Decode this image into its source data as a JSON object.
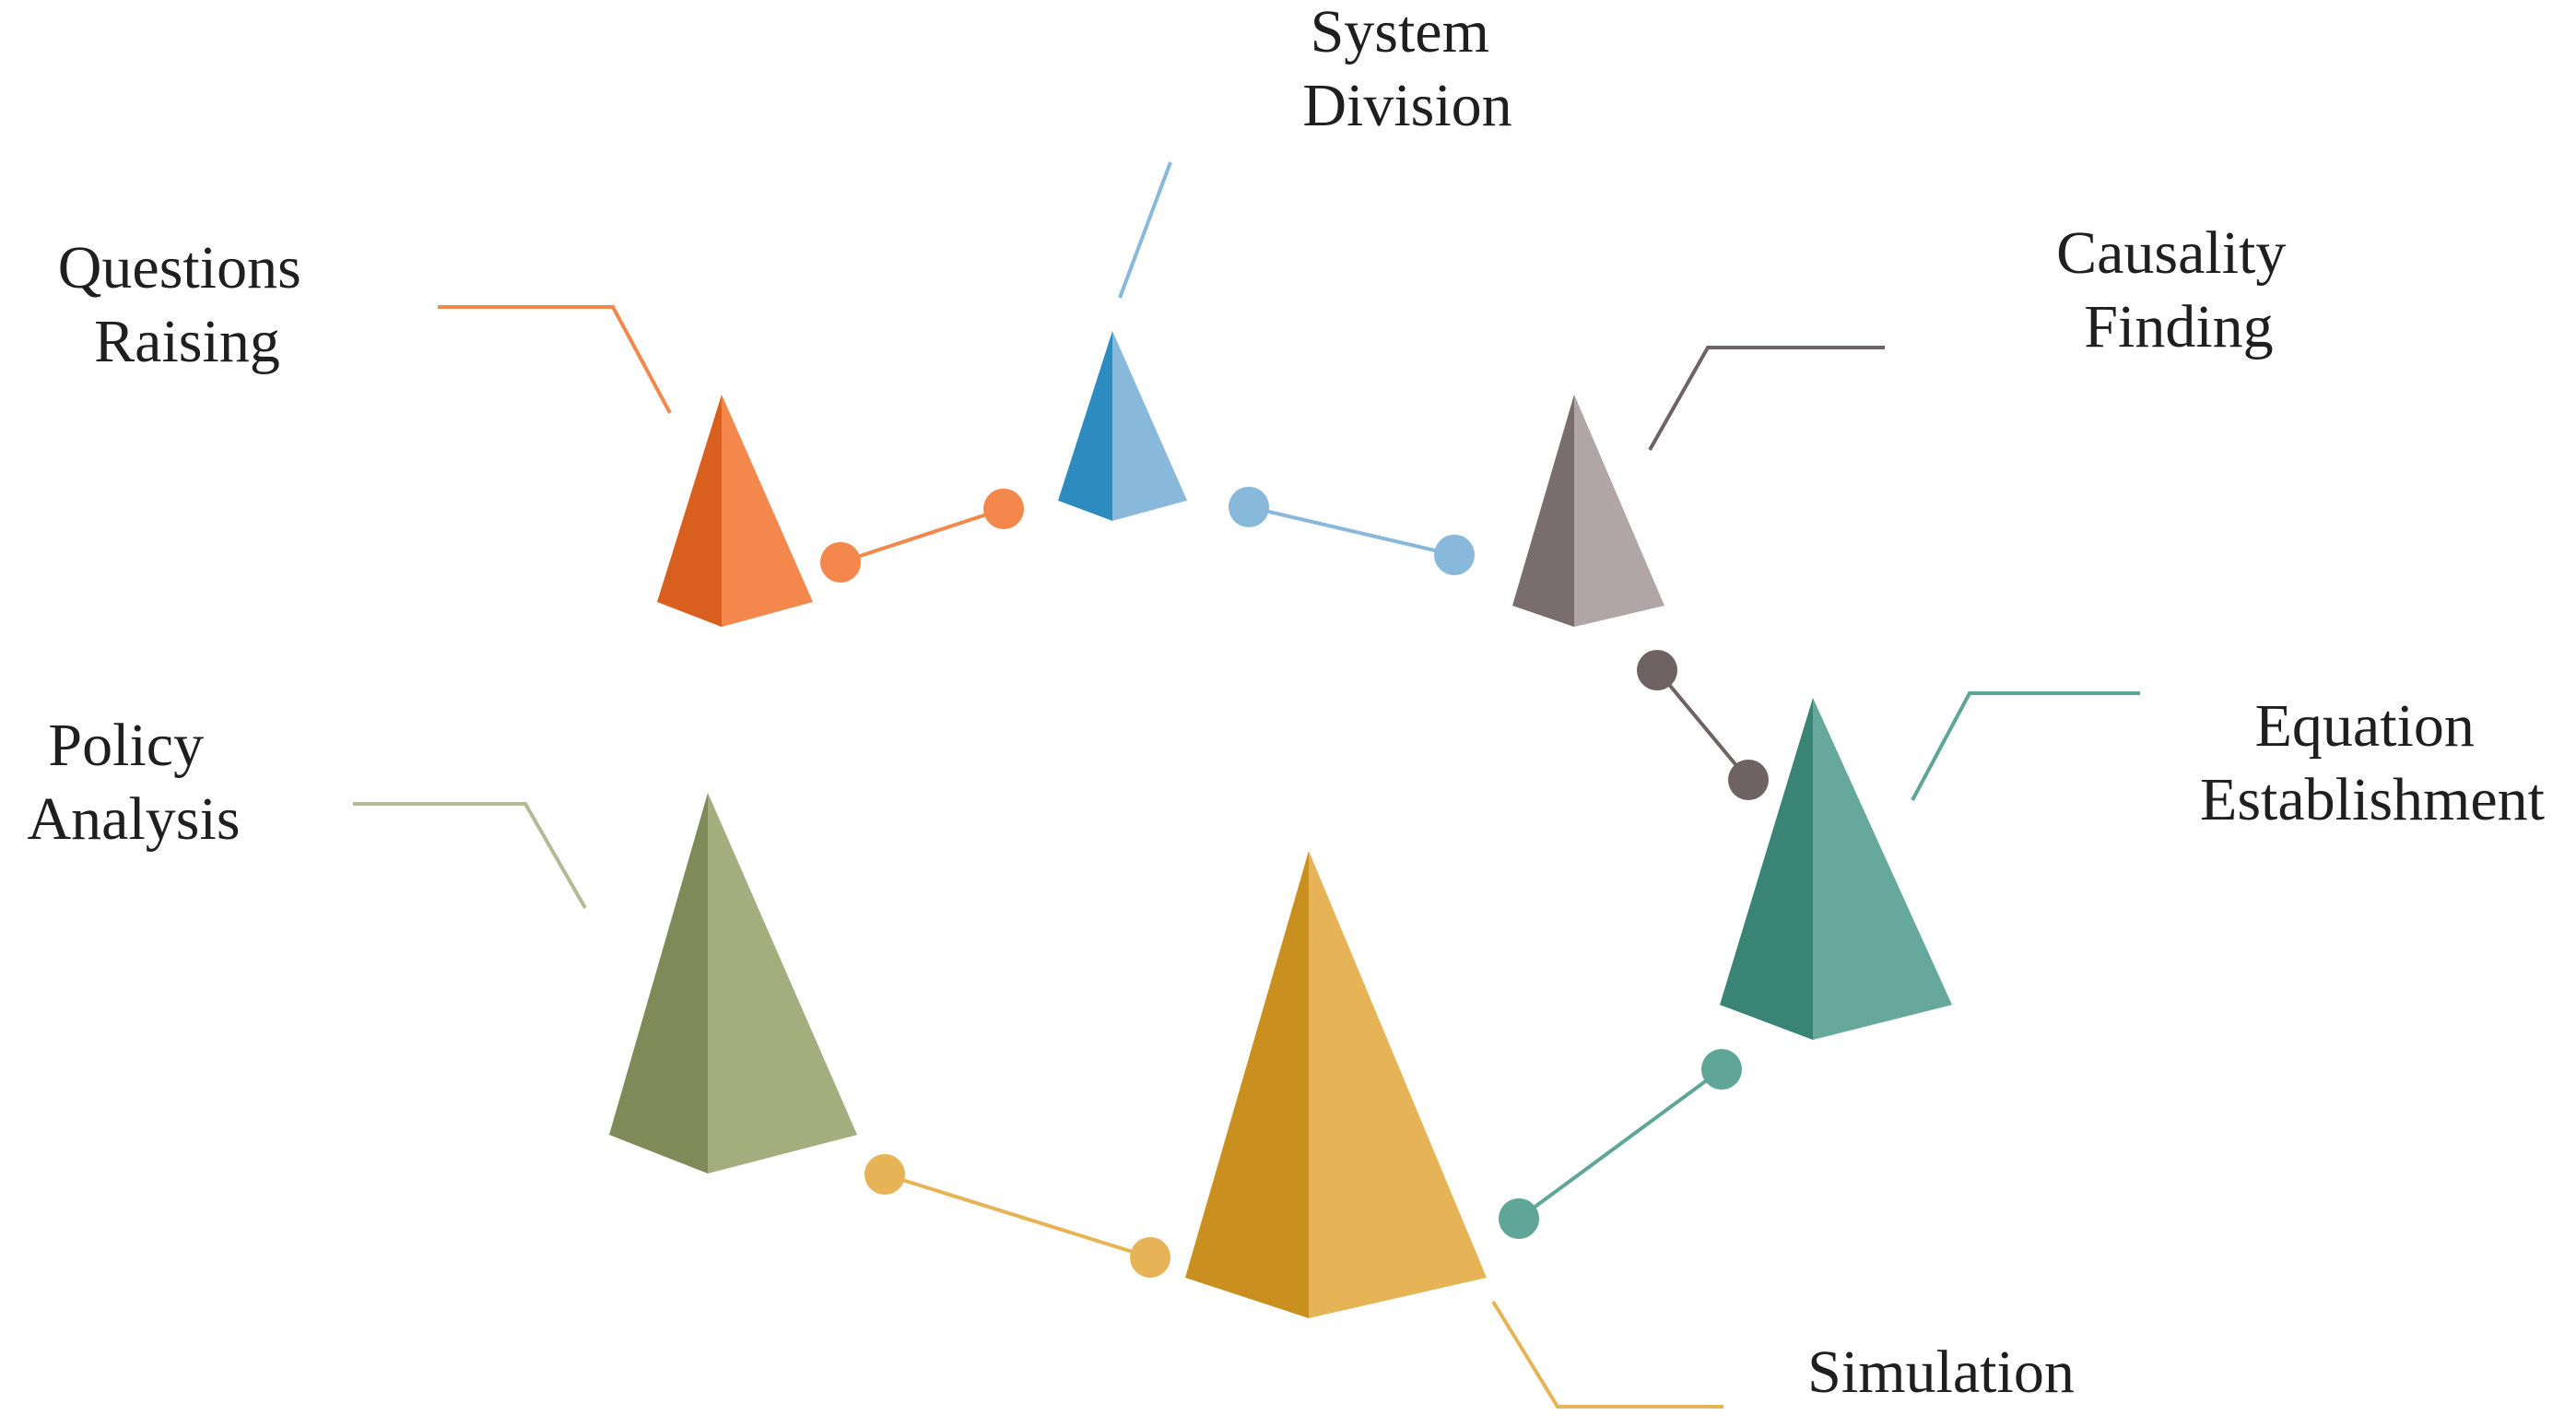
{
  "steps": [
    {
      "id": "questions-raising",
      "label": [
        "Questions",
        "Raising"
      ],
      "color_dark": "#D95F1E",
      "color_light": "#F4874B",
      "line_color": "#F4874B"
    },
    {
      "id": "system-division",
      "label": [
        "System",
        "Division"
      ],
      "color_dark": "#2E8BC0",
      "color_light": "#88B8DA",
      "line_color": "#88B8DA"
    },
    {
      "id": "causality-finding",
      "label": [
        "Causality",
        "Finding"
      ],
      "color_dark": "#7A6D6E",
      "color_light": "#B0A6A7",
      "line_color": "#6E6264"
    },
    {
      "id": "equation-establishment",
      "label": [
        "Equation",
        "Establishment"
      ],
      "color_dark": "#3A8476",
      "color_light": "#66A99C",
      "line_color": "#5FA699"
    },
    {
      "id": "simulation",
      "label": [
        "Simulation"
      ],
      "color_dark": "#C98F1F",
      "color_light": "#E6B456",
      "line_color": "#E6B456"
    },
    {
      "id": "policy-analysis",
      "label": [
        "Policy",
        "Analysis"
      ],
      "color_dark": "#7F8A58",
      "color_light": "#A3AD7E",
      "line_color": "#B3BA95"
    }
  ],
  "connectors": [
    {
      "id": "connector-questions-system",
      "color": "#F4874B"
    },
    {
      "id": "connector-system-causality",
      "color": "#88B8DA"
    },
    {
      "id": "connector-causality-equation",
      "color": "#6E6264"
    },
    {
      "id": "connector-equation-simulation",
      "color": "#5FA699"
    },
    {
      "id": "connector-simulation-policy",
      "color": "#E6B456"
    }
  ]
}
